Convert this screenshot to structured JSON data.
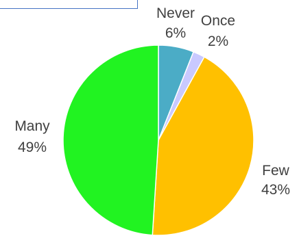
{
  "chart_data": {
    "type": "pie",
    "title": "",
    "slices": [
      {
        "name": "Never",
        "value": 6,
        "label": "6%",
        "color": "#4bacc6"
      },
      {
        "name": "Once",
        "value": 2,
        "label": "2%",
        "color": "#c9c9ff"
      },
      {
        "name": "Few",
        "value": 43,
        "label": "43%",
        "color": "#ffc000"
      },
      {
        "name": "Many",
        "value": 49,
        "label": "49%",
        "color": "#21f321"
      }
    ],
    "start_angle_deg": 0,
    "direction": "clockwise",
    "legend": "none",
    "data_labels": "outside, category name and percentage"
  }
}
